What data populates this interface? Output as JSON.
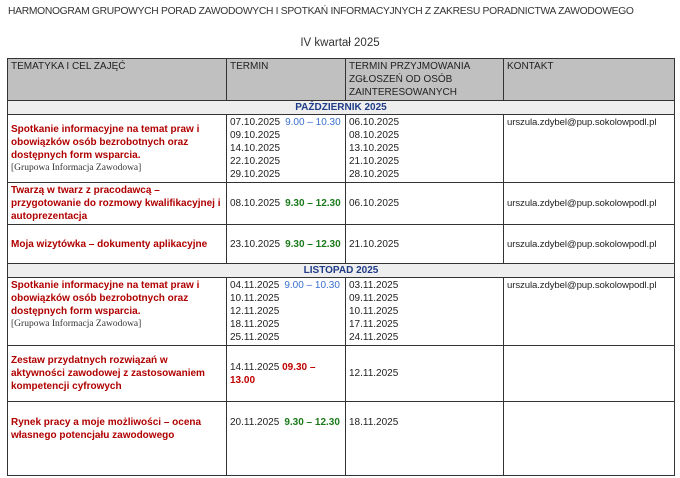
{
  "title": "HARMONOGRAM GRUPOWYCH PORAD ZAWODOWYCH I SPOTKAŃ INFORMACYJNYCH Z ZAKRESU PORADNICTWA ZAWODOWEGO",
  "subtitle": "IV kwartał 2025",
  "headers": [
    "TEMATYKA I CEL ZAJĘĆ",
    "TERMIN",
    "TERMIN PRZYJMOWANIA ZGŁOSZEŃ OD OSÓB ZAINTERESOWANYCH",
    "KONTAKT"
  ],
  "months": [
    {
      "label": "PAŹDZIERNIK 2025",
      "rows": [
        {
          "topic": "Spotkanie informacyjne na temat praw i obowiązków osób bezrobotnych oraz dostępnych form wsparcia.",
          "note": "[Grupowa Informacja Zawodowa]",
          "dates": [
            "07.10.2025",
            "09.10.2025",
            "14.10.2025",
            "22.10.2025",
            "29.10.2025"
          ],
          "time": "9.00 – 10.30",
          "deadlines": [
            "06.10.2025",
            "08.10.2025",
            "13.10.2025",
            "21.10.2025",
            "28.10.2025"
          ],
          "contact": "urszula.zdybel@pup.sokolowpodl.pl"
        },
        {
          "topic": "Twarzą w twarz z pracodawcą – przygotowanie do rozmowy kwalifikacyjnej i autoprezentacja",
          "dates": [
            "08.10.2025"
          ],
          "time": "9.30 – 12.30",
          "deadlines": [
            "06.10.2025"
          ],
          "contact": "urszula.zdybel@pup.sokolowpodl.pl"
        },
        {
          "topic": "Moja wizytówka – dokumenty aplikacyjne",
          "dates": [
            "23.10.2025"
          ],
          "time": "9.30 – 12.30",
          "deadlines": [
            "21.10.2025"
          ],
          "contact": "urszula.zdybel@pup.sokolowpodl.pl"
        }
      ]
    },
    {
      "label": "LISTOPAD 2025",
      "rows": [
        {
          "topic": "Spotkanie informacyjne na temat praw i obowiązków osób bezrobotnych oraz dostępnych form wsparcia.",
          "note": "[Grupowa Informacja Zawodowa]",
          "dates": [
            "04.11.2025",
            "10.11.2025",
            "12.11.2025",
            "18.11.2025",
            "25.11.2025"
          ],
          "time": "9.00 – 10.30",
          "deadlines": [
            "03.11.2025",
            "09.11.2025",
            "10.11.2025",
            "17.11.2025",
            "24.11.2025"
          ],
          "contact": "urszula.zdybel@pup.sokolowpodl.pl"
        },
        {
          "topic": "Zestaw przydatnych rozwiązań w aktywności zawodowej z zastosowaniem kompetencji cyfrowych",
          "dates": [
            "14.11.2025"
          ],
          "time": "09.30 – 13.00",
          "deadlines": [
            "12.11.2025"
          ]
        },
        {
          "topic": "Rynek pracy a moje możliwości – ocena własnego potencjału zawodowego",
          "dates": [
            "20.11.2025"
          ],
          "time": "9.30 – 12.30",
          "deadlines": [
            "18.11.2025"
          ]
        }
      ]
    }
  ]
}
